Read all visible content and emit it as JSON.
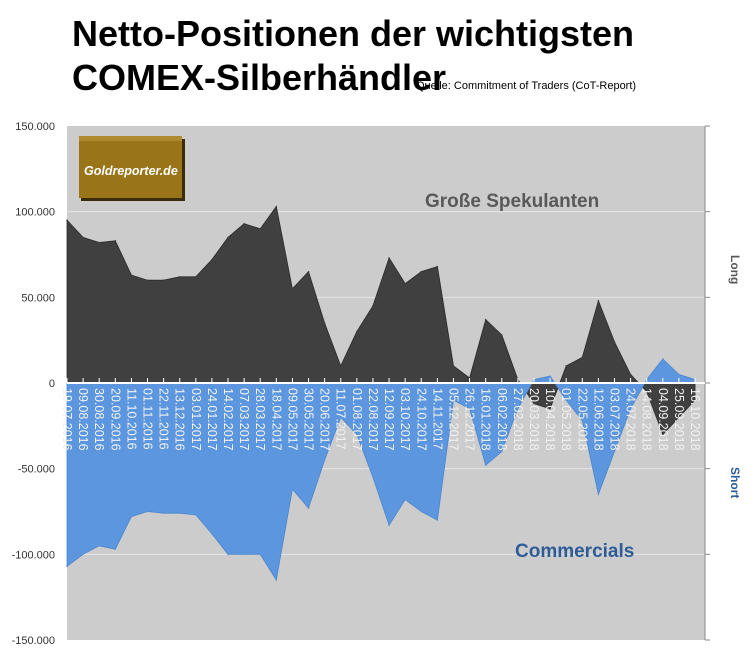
{
  "chart_data": {
    "type": "area",
    "title_line1": "Netto-Positionen der wichtigsten",
    "title_line2": "COMEX-Silberhändler",
    "source": "Quelle: Commitment of Traders (CoT-Report)",
    "logo_text": "Goldreporter.de",
    "ylim": [
      -150000,
      150000
    ],
    "yticks": [
      "150.000",
      "100.000",
      "50.000",
      "0",
      "-50.000",
      "-100.000",
      "-150.000"
    ],
    "ytick_values": [
      150000,
      100000,
      50000,
      0,
      -50000,
      -100000,
      -150000
    ],
    "right_labels": {
      "long": "Long",
      "short": "Short"
    },
    "grid": true,
    "categories": [
      "19.07.2016",
      "09.08.2016",
      "30.08.2016",
      "20.09.2016",
      "11.10.2016",
      "01.11.2016",
      "22.11.2016",
      "13.12.2016",
      "03.01.2017",
      "24.01.2017",
      "14.02.2017",
      "07.03.2017",
      "28.03.2017",
      "18.04.2017",
      "09.05.2017",
      "30.05.2017",
      "20.06.2017",
      "11.07.2017",
      "01.08.2017",
      "22.08.2017",
      "12.09.2017",
      "03.10.2017",
      "24.10.2017",
      "14.11.2017",
      "05.12.2017",
      "26.12.2017",
      "16.01.2018",
      "06.02.2018",
      "27.02.2018",
      "20.03.2018",
      "10.04.2018",
      "01.05.2018",
      "22.05.2018",
      "12.06.2018",
      "03.07.2018",
      "24.07.2018",
      "14.08.2018",
      "04.09.2018",
      "25.09.2018",
      "16.10.2018"
    ],
    "series": [
      {
        "name": "Große Spekulanten",
        "color": "#404040",
        "values": [
          95000,
          85000,
          82000,
          83000,
          63000,
          60000,
          60000,
          62000,
          62000,
          72000,
          85000,
          93000,
          90000,
          103000,
          55000,
          65000,
          35000,
          10000,
          30000,
          45000,
          73000,
          58000,
          65000,
          68000,
          10000,
          3000,
          37000,
          28000,
          2000,
          -12000,
          -15000,
          10000,
          15000,
          48000,
          24000,
          5000,
          -5000,
          -30000,
          -20000,
          -10000
        ]
      },
      {
        "name": "Commercials",
        "color": "#5b96de",
        "values": [
          -107000,
          -100000,
          -95000,
          -97000,
          -78000,
          -75000,
          -76000,
          -76000,
          -77000,
          -88000,
          -100000,
          -100000,
          -100000,
          -115000,
          -62000,
          -73000,
          -45000,
          -20000,
          -30000,
          -55000,
          -83000,
          -68000,
          -75000,
          -80000,
          -10000,
          -15000,
          -48000,
          -40000,
          -15000,
          2000,
          4000,
          -10000,
          -22000,
          -65000,
          -40000,
          -15000,
          2000,
          14000,
          5000,
          2000
        ]
      }
    ]
  }
}
